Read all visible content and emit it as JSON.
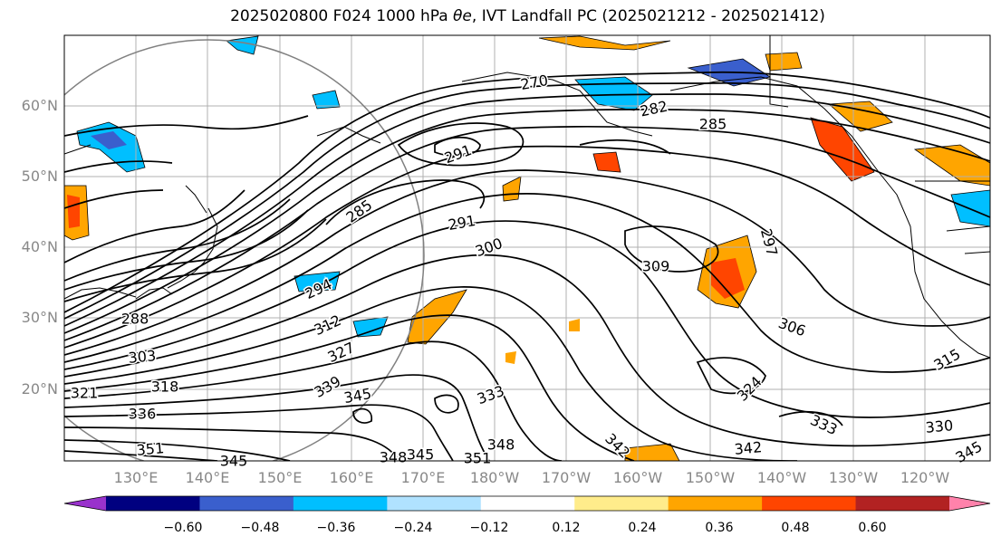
{
  "title_prefix": "2025020800 F024 1000 hPa ",
  "title_symbol": "θe",
  "title_suffix": ", IVT Landfall PC (2025021212 - 2025021412)",
  "lat_labels": [
    "60°N",
    "50°N",
    "40°N",
    "30°N",
    "20°N"
  ],
  "lon_labels": [
    "130°E",
    "140°E",
    "150°E",
    "160°E",
    "170°E",
    "180°W",
    "170°W",
    "160°W",
    "150°W",
    "140°W",
    "130°W",
    "120°W"
  ],
  "colorbar": {
    "ticks": [
      "−0.60",
      "−0.48",
      "−0.36",
      "−0.24",
      "−0.12",
      "0.12",
      "0.24",
      "0.36",
      "0.48",
      "0.60"
    ],
    "colors": [
      "#9932cc",
      "#000080",
      "#3a5fcd",
      "#00bfff",
      "#b0e2ff",
      "#ffffff",
      "#ffec8b",
      "#ffa500",
      "#ff4500",
      "#b22222",
      "#ff82ab"
    ]
  },
  "contour_labels": [
    "270",
    "282",
    "285",
    "291",
    "285",
    "291",
    "297",
    "300",
    "309",
    "294",
    "306",
    "312",
    "288",
    "303",
    "327",
    "318",
    "321",
    "339",
    "345",
    "336",
    "333",
    "324",
    "333",
    "330",
    "315",
    "351",
    "345",
    "348",
    "345",
    "351",
    "348",
    "342",
    "342",
    "345"
  ]
}
